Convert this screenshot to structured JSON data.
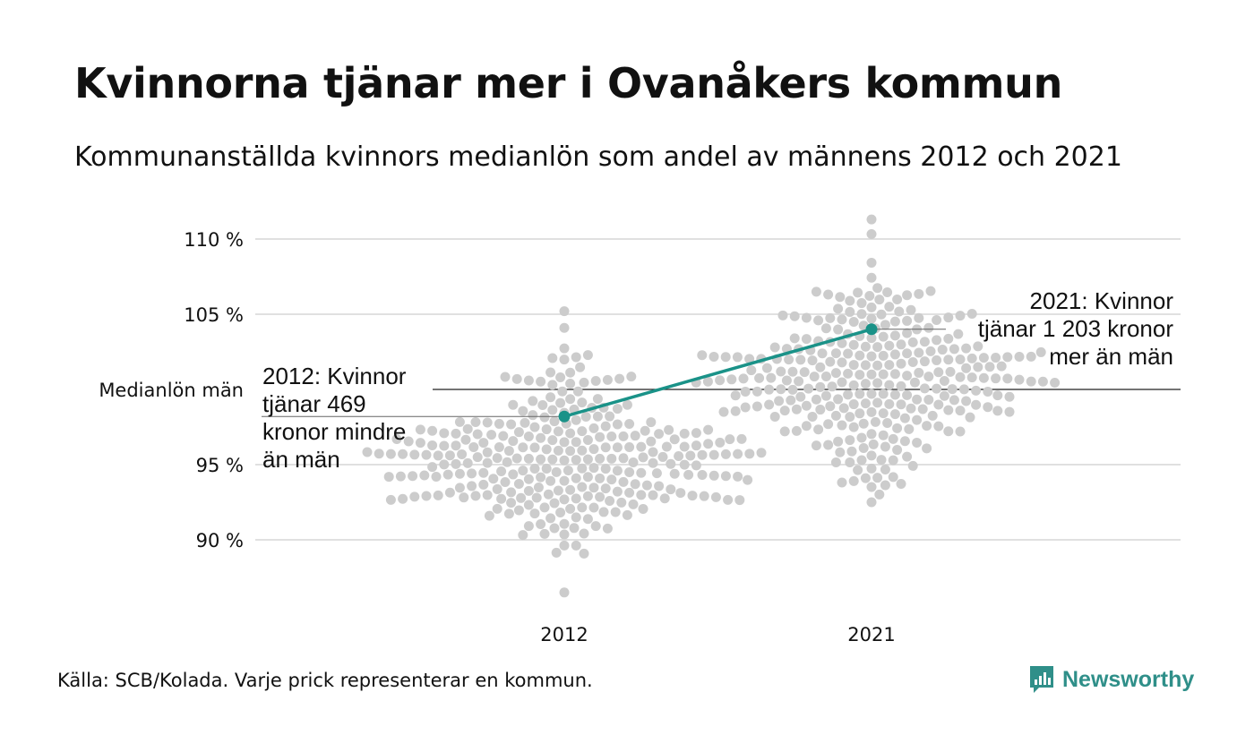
{
  "title": "Kvinnorna tjänar mer i Ovanåkers kommun",
  "subtitle": "Kommunanställda kvinnors medianlön som andel av männens 2012 och 2021",
  "source": "Källa: SCB/Kolada. Varje prick representerar en kommun.",
  "brand": "Newsworthy",
  "colors": {
    "dots": "#cccccc",
    "highlight": "#1a9288",
    "grid": "#e0e0e0",
    "reference": "#222222",
    "brand": "#2f8f89"
  },
  "chart_data": {
    "type": "scatter",
    "title": "Kvinnorna tjänar mer i Ovanåkers kommun",
    "subtitle": "Kommunanställda kvinnors medianlön som andel av männens 2012 och 2021",
    "categories": [
      "2012",
      "2021"
    ],
    "y_ticks": [
      90,
      95,
      100,
      105,
      110
    ],
    "y_tick_labels": [
      "90 %",
      "95 %",
      "Medianlön män",
      "105 %",
      "110 %"
    ],
    "ylim": [
      86,
      111
    ],
    "reference_line": {
      "value": 100,
      "label": "Medianlön män"
    },
    "grid": true,
    "distribution": [
      {
        "category": "2012",
        "median": 95.3,
        "min": 86.5,
        "max": 105.2,
        "count": 290
      },
      {
        "category": "2021",
        "median": 101.0,
        "min": 92.5,
        "max": 111.3,
        "count": 290
      }
    ],
    "highlight": {
      "name": "Ovanåker",
      "values": [
        98.2,
        104.0
      ],
      "annotations": [
        "2012: Kvinnor tjänar 469 kronor mindre än män",
        "2021: Kvinnor tjänar 1 203 kronor mer än män"
      ]
    }
  },
  "annotations": {
    "a2012": [
      "2012: Kvinnor",
      "tjänar 469",
      "kronor mindre",
      "än män"
    ],
    "a2021": [
      "2021: Kvinnor",
      "tjänar 1 203 kronor",
      "mer än män"
    ]
  }
}
